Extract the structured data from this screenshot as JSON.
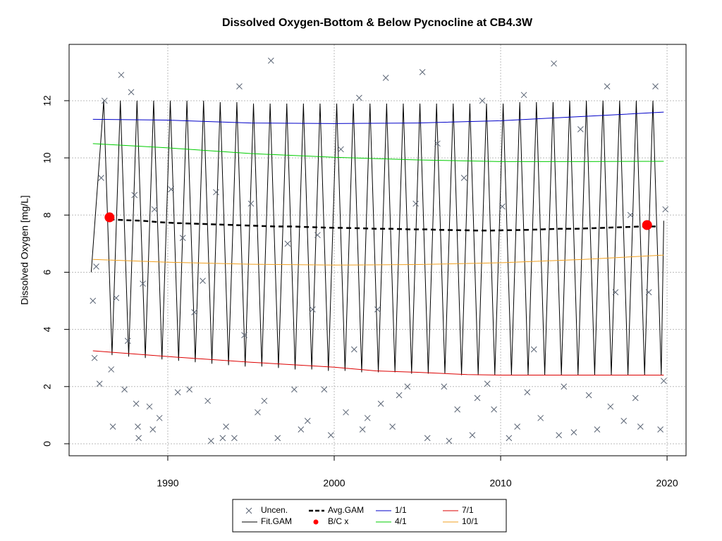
{
  "chart_data": {
    "type": "line",
    "title": "Dissolved Oxygen-Bottom & Below Pycnocline at CB4.3W",
    "y_label": "Dissolved Oxygen [mg/L]",
    "xlim": [
      1984.07,
      2021.14
    ],
    "ylim": [
      -0.42,
      13.97
    ],
    "xticks": [
      1990,
      2000,
      2010,
      2020
    ],
    "yticks": [
      0,
      2,
      4,
      6,
      8,
      10,
      12
    ],
    "grid": true,
    "series": [
      {
        "name": "Uncen.",
        "kind": "points",
        "color": "#5a6474",
        "x": [
          1985.5,
          1985.6,
          1985.7,
          1985.9,
          1986.0,
          1986.2,
          1986.6,
          1986.7,
          1986.9,
          1987.2,
          1987.4,
          1987.6,
          1987.8,
          1988.0,
          1988.1,
          1988.2,
          1988.25,
          1988.5,
          1988.9,
          1989.1,
          1989.2,
          1989.5,
          1990.2,
          1990.6,
          1990.9,
          1991.3,
          1991.6,
          1992.1,
          1992.4,
          1992.6,
          1992.9,
          1993.3,
          1993.5,
          1994.0,
          1994.3,
          1994.6,
          1995.0,
          1995.4,
          1995.8,
          1996.2,
          1996.6,
          1997.2,
          1997.6,
          1998.0,
          1998.4,
          1998.7,
          1999.0,
          1999.4,
          1999.8,
          2000.4,
          2000.7,
          2001.2,
          2001.5,
          2001.7,
          2002.0,
          2002.6,
          2002.8,
          2003.1,
          2003.5,
          2003.9,
          2004.4,
          2004.9,
          2005.3,
          2005.6,
          2006.2,
          2006.6,
          2006.9,
          2007.4,
          2007.8,
          2008.3,
          2008.6,
          2008.9,
          2009.2,
          2009.6,
          2010.1,
          2010.5,
          2011.0,
          2011.4,
          2011.6,
          2012.0,
          2012.4,
          2013.2,
          2013.5,
          2013.8,
          2014.4,
          2014.8,
          2015.3,
          2015.8,
          2016.4,
          2016.6,
          2016.9,
          2017.4,
          2017.8,
          2018.1,
          2018.4,
          2018.9,
          2019.3,
          2019.6,
          2019.8,
          2019.9
        ],
        "values": [
          5.0,
          3.0,
          6.2,
          2.1,
          9.3,
          12.0,
          2.6,
          0.6,
          5.1,
          12.9,
          1.9,
          3.6,
          12.3,
          8.7,
          1.4,
          0.6,
          0.2,
          5.6,
          1.3,
          0.5,
          8.2,
          0.9,
          8.9,
          1.8,
          7.2,
          1.9,
          4.6,
          5.7,
          1.5,
          0.1,
          8.8,
          0.2,
          0.6,
          0.2,
          12.5,
          3.8,
          8.4,
          1.1,
          1.5,
          13.4,
          0.2,
          7.0,
          1.9,
          0.5,
          0.8,
          4.7,
          7.3,
          1.9,
          0.3,
          10.3,
          1.1,
          3.3,
          12.1,
          0.5,
          0.9,
          4.7,
          1.4,
          12.8,
          0.6,
          1.7,
          2.0,
          8.4,
          13.0,
          0.2,
          10.5,
          2.0,
          0.1,
          1.2,
          9.3,
          0.3,
          1.6,
          12.0,
          2.1,
          1.2,
          8.3,
          0.2,
          0.6,
          12.2,
          1.8,
          3.3,
          0.9,
          13.3,
          0.3,
          2.0,
          0.4,
          11.0,
          1.7,
          0.5,
          12.5,
          1.3,
          5.3,
          0.8,
          8.0,
          1.6,
          0.6,
          5.3,
          12.5,
          0.5,
          2.2,
          8.2
        ]
      },
      {
        "name": "Fit.GAM",
        "kind": "line",
        "color": "#000000",
        "x": [
          1985.4,
          1986.15,
          1986.65,
          1987.15,
          1987.65,
          1988.15,
          1988.65,
          1989.15,
          1989.65,
          1990.15,
          1990.65,
          1991.15,
          1991.65,
          1992.15,
          1992.65,
          1993.15,
          1993.65,
          1994.15,
          1994.65,
          1995.15,
          1995.65,
          1996.15,
          1996.65,
          1997.15,
          1997.65,
          1998.15,
          1998.65,
          1999.15,
          1999.65,
          2000.15,
          2000.65,
          2001.15,
          2001.65,
          2002.15,
          2002.65,
          2003.15,
          2003.65,
          2004.15,
          2004.65,
          2005.15,
          2005.65,
          2006.15,
          2006.65,
          2007.15,
          2007.65,
          2008.15,
          2008.65,
          2009.15,
          2009.65,
          2010.15,
          2010.65,
          2011.15,
          2011.65,
          2012.15,
          2012.65,
          2013.15,
          2013.65,
          2014.15,
          2014.65,
          2015.15,
          2015.65,
          2016.15,
          2016.65,
          2017.15,
          2017.65,
          2018.15,
          2018.65,
          2019.15,
          2019.65,
          2019.8
        ],
        "values": [
          6.0,
          12.0,
          3.1,
          12.0,
          3.05,
          12.0,
          3.0,
          12.0,
          2.95,
          12.0,
          2.9,
          12.0,
          2.85,
          12.0,
          2.8,
          11.95,
          2.75,
          11.95,
          2.7,
          11.9,
          2.7,
          11.9,
          2.65,
          11.9,
          2.6,
          11.9,
          2.6,
          11.9,
          2.55,
          11.9,
          2.55,
          11.9,
          2.5,
          11.9,
          2.5,
          11.9,
          2.5,
          11.9,
          2.45,
          11.9,
          2.45,
          11.9,
          2.45,
          11.9,
          2.4,
          11.9,
          2.4,
          11.9,
          2.4,
          11.9,
          2.4,
          11.95,
          2.4,
          11.95,
          2.4,
          11.95,
          2.4,
          12.0,
          2.4,
          12.0,
          2.4,
          12.0,
          2.4,
          12.0,
          2.4,
          12.0,
          2.4,
          12.0,
          2.4,
          7.8
        ]
      },
      {
        "name": "Avg.GAM",
        "kind": "dashed",
        "color": "#000000",
        "x": [
          1986.5,
          1987.5,
          1988.5,
          1989.5,
          1990.5,
          1991.5,
          1992.5,
          1993.5,
          1994.5,
          1995.5,
          1996.5,
          1997.5,
          1998.5,
          1999.5,
          2000.5,
          2001.5,
          2002.5,
          2003.5,
          2004.5,
          2005.5,
          2006.5,
          2007.5,
          2008.5,
          2009.5,
          2010.5,
          2011.5,
          2012.5,
          2013.5,
          2014.5,
          2015.5,
          2016.5,
          2017.5,
          2018.5,
          2019.5
        ],
        "values": [
          7.85,
          7.82,
          7.8,
          7.75,
          7.72,
          7.7,
          7.68,
          7.66,
          7.64,
          7.62,
          7.6,
          7.6,
          7.58,
          7.56,
          7.55,
          7.54,
          7.52,
          7.52,
          7.5,
          7.5,
          7.48,
          7.47,
          7.46,
          7.46,
          7.47,
          7.48,
          7.5,
          7.52,
          7.52,
          7.54,
          7.56,
          7.58,
          7.6,
          7.6
        ]
      },
      {
        "name": "B/C x",
        "kind": "dots",
        "color": "#ff0000",
        "x": [
          1986.5,
          2018.8
        ],
        "values": [
          7.92,
          7.65
        ]
      },
      {
        "name": "1/1",
        "kind": "line",
        "color": "#0000c8",
        "x": [
          1985.5,
          1990,
          1995,
          2000,
          2005,
          2010,
          2015,
          2019.8
        ],
        "values": [
          11.35,
          11.32,
          11.22,
          11.2,
          11.22,
          11.3,
          11.45,
          11.6
        ]
      },
      {
        "name": "4/1",
        "kind": "line",
        "color": "#00cc00",
        "x": [
          1985.5,
          1990,
          1995,
          2000,
          2005,
          2010,
          2015,
          2019.8
        ],
        "values": [
          10.5,
          10.35,
          10.15,
          10.02,
          9.93,
          9.87,
          9.87,
          9.88
        ]
      },
      {
        "name": "7/1",
        "kind": "line",
        "color": "#dd0000",
        "x": [
          1985.5,
          1990,
          1995,
          2000,
          2002.5,
          2005,
          2008,
          2010,
          2015,
          2019.8
        ],
        "values": [
          3.25,
          3.05,
          2.85,
          2.68,
          2.55,
          2.5,
          2.42,
          2.4,
          2.4,
          2.4
        ]
      },
      {
        "name": "10/1",
        "kind": "line",
        "color": "#f0a020",
        "x": [
          1985.5,
          1990,
          1995,
          2000,
          2005,
          2010,
          2015,
          2019.8
        ],
        "values": [
          6.45,
          6.35,
          6.28,
          6.25,
          6.27,
          6.33,
          6.45,
          6.6
        ]
      }
    ]
  }
}
